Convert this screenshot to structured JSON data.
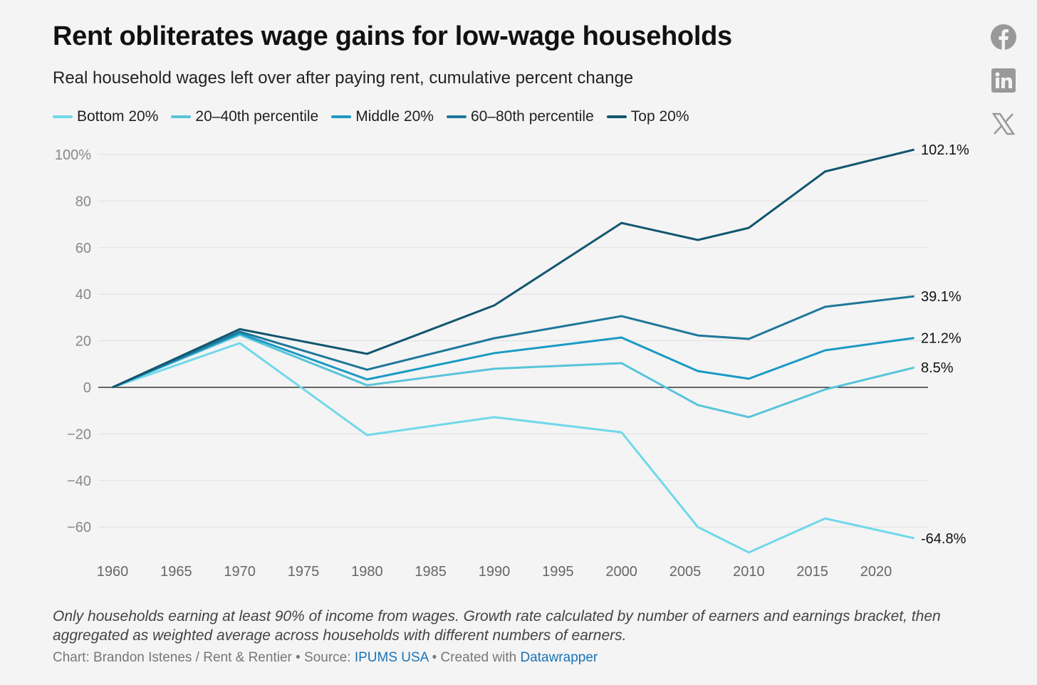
{
  "chart_data": {
    "type": "line",
    "title": "Rent obliterates wage gains for low-wage households",
    "subtitle": "Real household wages left over after paying rent, cumulative percent change",
    "x": [
      1960,
      1970,
      1980,
      1990,
      2000,
      2006,
      2010,
      2016,
      2023
    ],
    "xlim": [
      1960,
      2023
    ],
    "ylim": [
      -70,
      100
    ],
    "x_ticks": [
      "1960",
      "1965",
      "1970",
      "1975",
      "1980",
      "1985",
      "1990",
      "1995",
      "2000",
      "2005",
      "2010",
      "2015",
      "2020"
    ],
    "y_ticks": [
      "100%",
      "80",
      "60",
      "40",
      "20",
      "0",
      "−20",
      "−40",
      "−60"
    ],
    "y_tick_values": [
      100,
      80,
      60,
      40,
      20,
      0,
      -20,
      -40,
      -60
    ],
    "grid": true,
    "legend_placement": "top-left",
    "series": [
      {
        "name": "Bottom 20%",
        "color": "#70d8ea",
        "values": [
          0,
          19,
          -20.5,
          -12.8,
          -19.3,
          -60,
          -70.9,
          -56.3,
          -64.8
        ],
        "end_label": "-64.8%"
      },
      {
        "name": "20–40th percentile",
        "color": "#58c4da",
        "values": [
          0,
          22.6,
          0.9,
          8,
          10.4,
          -7.6,
          -12.8,
          -0.9,
          8.5
        ],
        "end_label": "8.5%"
      },
      {
        "name": "Middle 20%",
        "color": "#1a9ac4",
        "values": [
          0,
          23.2,
          3.4,
          14.7,
          21.4,
          7,
          3.7,
          15.9,
          21.2
        ],
        "end_label": "21.2%"
      },
      {
        "name": "60–80th percentile",
        "color": "#1f779a",
        "values": [
          0,
          23.9,
          7.6,
          21.1,
          30.6,
          22.3,
          20.8,
          34.6,
          39.1
        ],
        "end_label": "39.1%"
      },
      {
        "name": "Top 20%",
        "color": "#12566f",
        "values": [
          0,
          25,
          14.4,
          35.2,
          70.6,
          63.3,
          68.5,
          92.7,
          102.1
        ],
        "end_label": "102.1%"
      }
    ]
  },
  "notes": "Only households earning at least 90% of income from wages. Growth rate calculated by number of earners and earnings bracket, then aggregated as weighted average across households with different numbers of earners.",
  "byline": {
    "prefix": "Chart: Brandon Istenes / Rent & Rentier • Source: ",
    "source_link": "IPUMS USA",
    "middle": " • Created with ",
    "tool_link": "Datawrapper"
  },
  "social": [
    "facebook-icon",
    "linkedin-icon",
    "x-icon"
  ]
}
